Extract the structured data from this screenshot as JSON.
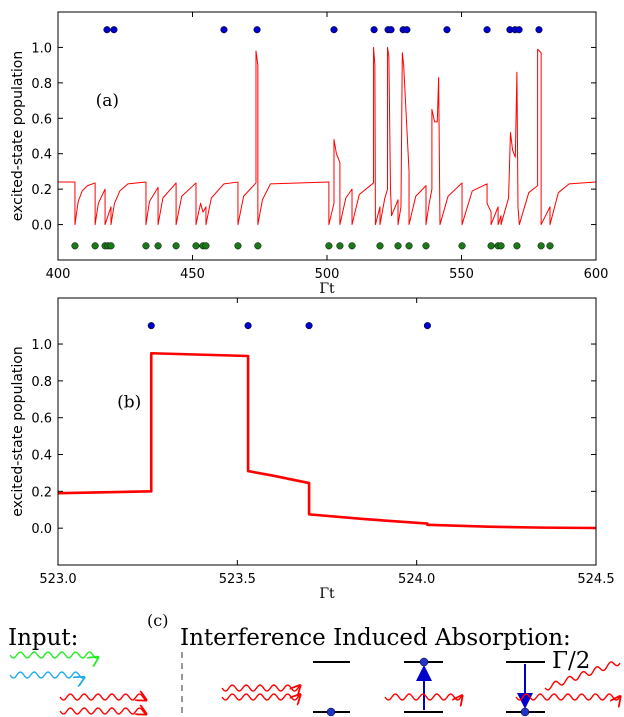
{
  "chart_data": [
    {
      "type": "line",
      "annotation": "(a)",
      "ylabel": "excited-state population",
      "xlabel": "Γt",
      "xlim": [
        400,
        600
      ],
      "xticks": [
        400,
        450,
        500,
        550,
        600
      ],
      "ylim": [
        -0.2,
        1.2
      ],
      "yticks": [
        {
          "value": 0,
          "label": "0.0"
        },
        0.2,
        0.4,
        0.6,
        0.8,
        {
          "value": 1,
          "label": "1.0"
        }
      ],
      "series": [
        {
          "mode": "line",
          "color": "#ff0000",
          "x": [
            400,
            406.3,
            406.3,
            407.5,
            409,
            411,
            413.8,
            413.8,
            415,
            417.5,
            417.5,
            418.6,
            419.7,
            419.7,
            421,
            423,
            426,
            432.7,
            432.7,
            434,
            437.2,
            437.2,
            439,
            443.9,
            443.9,
            446,
            451.3,
            451.3,
            453,
            453.9,
            455,
            455,
            457,
            461.7,
            466.9,
            466.9,
            469,
            473.6,
            473.6,
            474.3,
            474.3,
            476,
            479,
            500.7,
            500.7,
            502.6,
            502.6,
            503.5,
            504.8,
            504.8,
            507,
            509.3,
            509.3,
            512,
            517.3,
            517.3,
            517.8,
            518,
            519.7,
            519.7,
            521.5,
            522.5,
            522.5,
            523,
            523.6,
            524,
            526.4,
            526.4,
            527.5,
            528,
            528.5,
            530.5,
            530.5,
            533,
            536.8,
            536.8,
            538,
            539,
            539,
            540,
            541,
            541.5,
            542,
            545,
            550.2,
            550.2,
            554,
            559.5,
            559.5,
            561,
            561,
            563.6,
            563.6,
            564.7,
            564.7,
            567.5,
            568.2,
            569,
            570,
            570.6,
            571,
            571.5,
            575,
            578.3,
            578.3,
            579.6,
            579.6,
            582.9,
            582.9,
            586,
            590,
            600
          ],
          "values": [
            0.24,
            0.24,
            0,
            0.13,
            0.19,
            0.22,
            0.235,
            0,
            0.12,
            0.2,
            0,
            0.05,
            0.1,
            0,
            0.12,
            0.19,
            0.23,
            0.24,
            0,
            0.13,
            0.21,
            0,
            0.15,
            0.235,
            0,
            0.16,
            0.235,
            0,
            0.12,
            0.07,
            0.1,
            0,
            0.15,
            0.23,
            0.24,
            0,
            0.16,
            0.235,
            0.98,
            0.9,
            0,
            0.14,
            0.23,
            0.24,
            0,
            0.12,
            0.48,
            0.4,
            0.35,
            0,
            0.15,
            0.2,
            0,
            0.17,
            0.235,
            1.0,
            0.9,
            0,
            0.1,
            0,
            0.15,
            0.2,
            1.0,
            0.95,
            0.2,
            0.05,
            0.14,
            0,
            0.1,
            0.97,
            0.9,
            0.3,
            0,
            0.16,
            0.22,
            0,
            0.12,
            0.2,
            0.65,
            0.58,
            0.58,
            0.83,
            0,
            0.16,
            0.235,
            0,
            0.19,
            0.23,
            0.12,
            0.07,
            0,
            0.1,
            0,
            0.05,
            0,
            0.15,
            0.52,
            0.42,
            0.38,
            0.86,
            0.1,
            0,
            0.18,
            0.22,
            0.99,
            0.97,
            0,
            0.1,
            0,
            0.18,
            0.23,
            0.24
          ]
        },
        {
          "mode": "markers",
          "color": "#0000cc",
          "x": [
            418.2,
            420.8,
            461.7,
            474.0,
            502.6,
            517.5,
            522.7,
            523.8,
            528.3,
            529.7,
            544.6,
            559.5,
            568.0,
            569.9,
            571.4,
            578.8
          ],
          "values": [
            1.1,
            1.1,
            1.1,
            1.1,
            1.1,
            1.1,
            1.1,
            1.1,
            1.1,
            1.1,
            1.1,
            1.1,
            1.1,
            1.1,
            1.1,
            1.1
          ]
        },
        {
          "mode": "markers",
          "color": "#1a7a1a",
          "x": [
            406.3,
            413.8,
            417.5,
            418.6,
            419.7,
            432.7,
            437.2,
            443.9,
            451.3,
            453.9,
            455.0,
            466.9,
            474.3,
            500.7,
            504.8,
            509.3,
            519.7,
            526.4,
            530.5,
            536.8,
            550.2,
            561.0,
            563.6,
            564.7,
            570.6,
            579.6,
            582.9
          ],
          "values": [
            -0.12,
            -0.12,
            -0.12,
            -0.12,
            -0.12,
            -0.12,
            -0.12,
            -0.12,
            -0.12,
            -0.12,
            -0.12,
            -0.12,
            -0.12,
            -0.12,
            -0.12,
            -0.12,
            -0.12,
            -0.12,
            -0.12,
            -0.12,
            -0.12,
            -0.12,
            -0.12,
            -0.12,
            -0.12,
            -0.12,
            -0.12
          ]
        }
      ]
    },
    {
      "type": "line",
      "annotation": "(b)",
      "ylabel": "excited-state population",
      "xlabel": "Γt",
      "xlim": [
        523.0,
        524.5
      ],
      "xticks": [
        {
          "value": 523,
          "label": "523.0"
        },
        523.5,
        {
          "value": 524,
          "label": "524.0"
        },
        524.5
      ],
      "ylim": [
        -0.2,
        1.25
      ],
      "yticks": [
        {
          "value": 0,
          "label": "0.0"
        },
        0.2,
        0.4,
        0.6,
        0.8,
        {
          "value": 1,
          "label": "1.0"
        }
      ],
      "series": [
        {
          "mode": "line",
          "color": "#ff0000",
          "x": [
            523.0,
            523.26,
            523.26,
            523.53,
            523.53,
            523.6,
            523.7,
            523.7,
            523.85,
            524.03,
            524.03,
            524.2,
            524.35,
            524.5
          ],
          "values": [
            0.19,
            0.2,
            0.95,
            0.935,
            0.31,
            0.285,
            0.245,
            0.075,
            0.05,
            0.025,
            0.018,
            0.008,
            0.003,
            0.001
          ]
        },
        {
          "mode": "markers",
          "color": "#0000cc",
          "x": [
            523.26,
            523.53,
            523.7,
            524.03
          ],
          "values": [
            1.1,
            1.1,
            1.1,
            1.1
          ]
        }
      ]
    }
  ],
  "diagram": {
    "label": "(c)",
    "input_label": "Input:",
    "title": "Interference Induced Absorption:",
    "rate_label": "Γ/2"
  }
}
